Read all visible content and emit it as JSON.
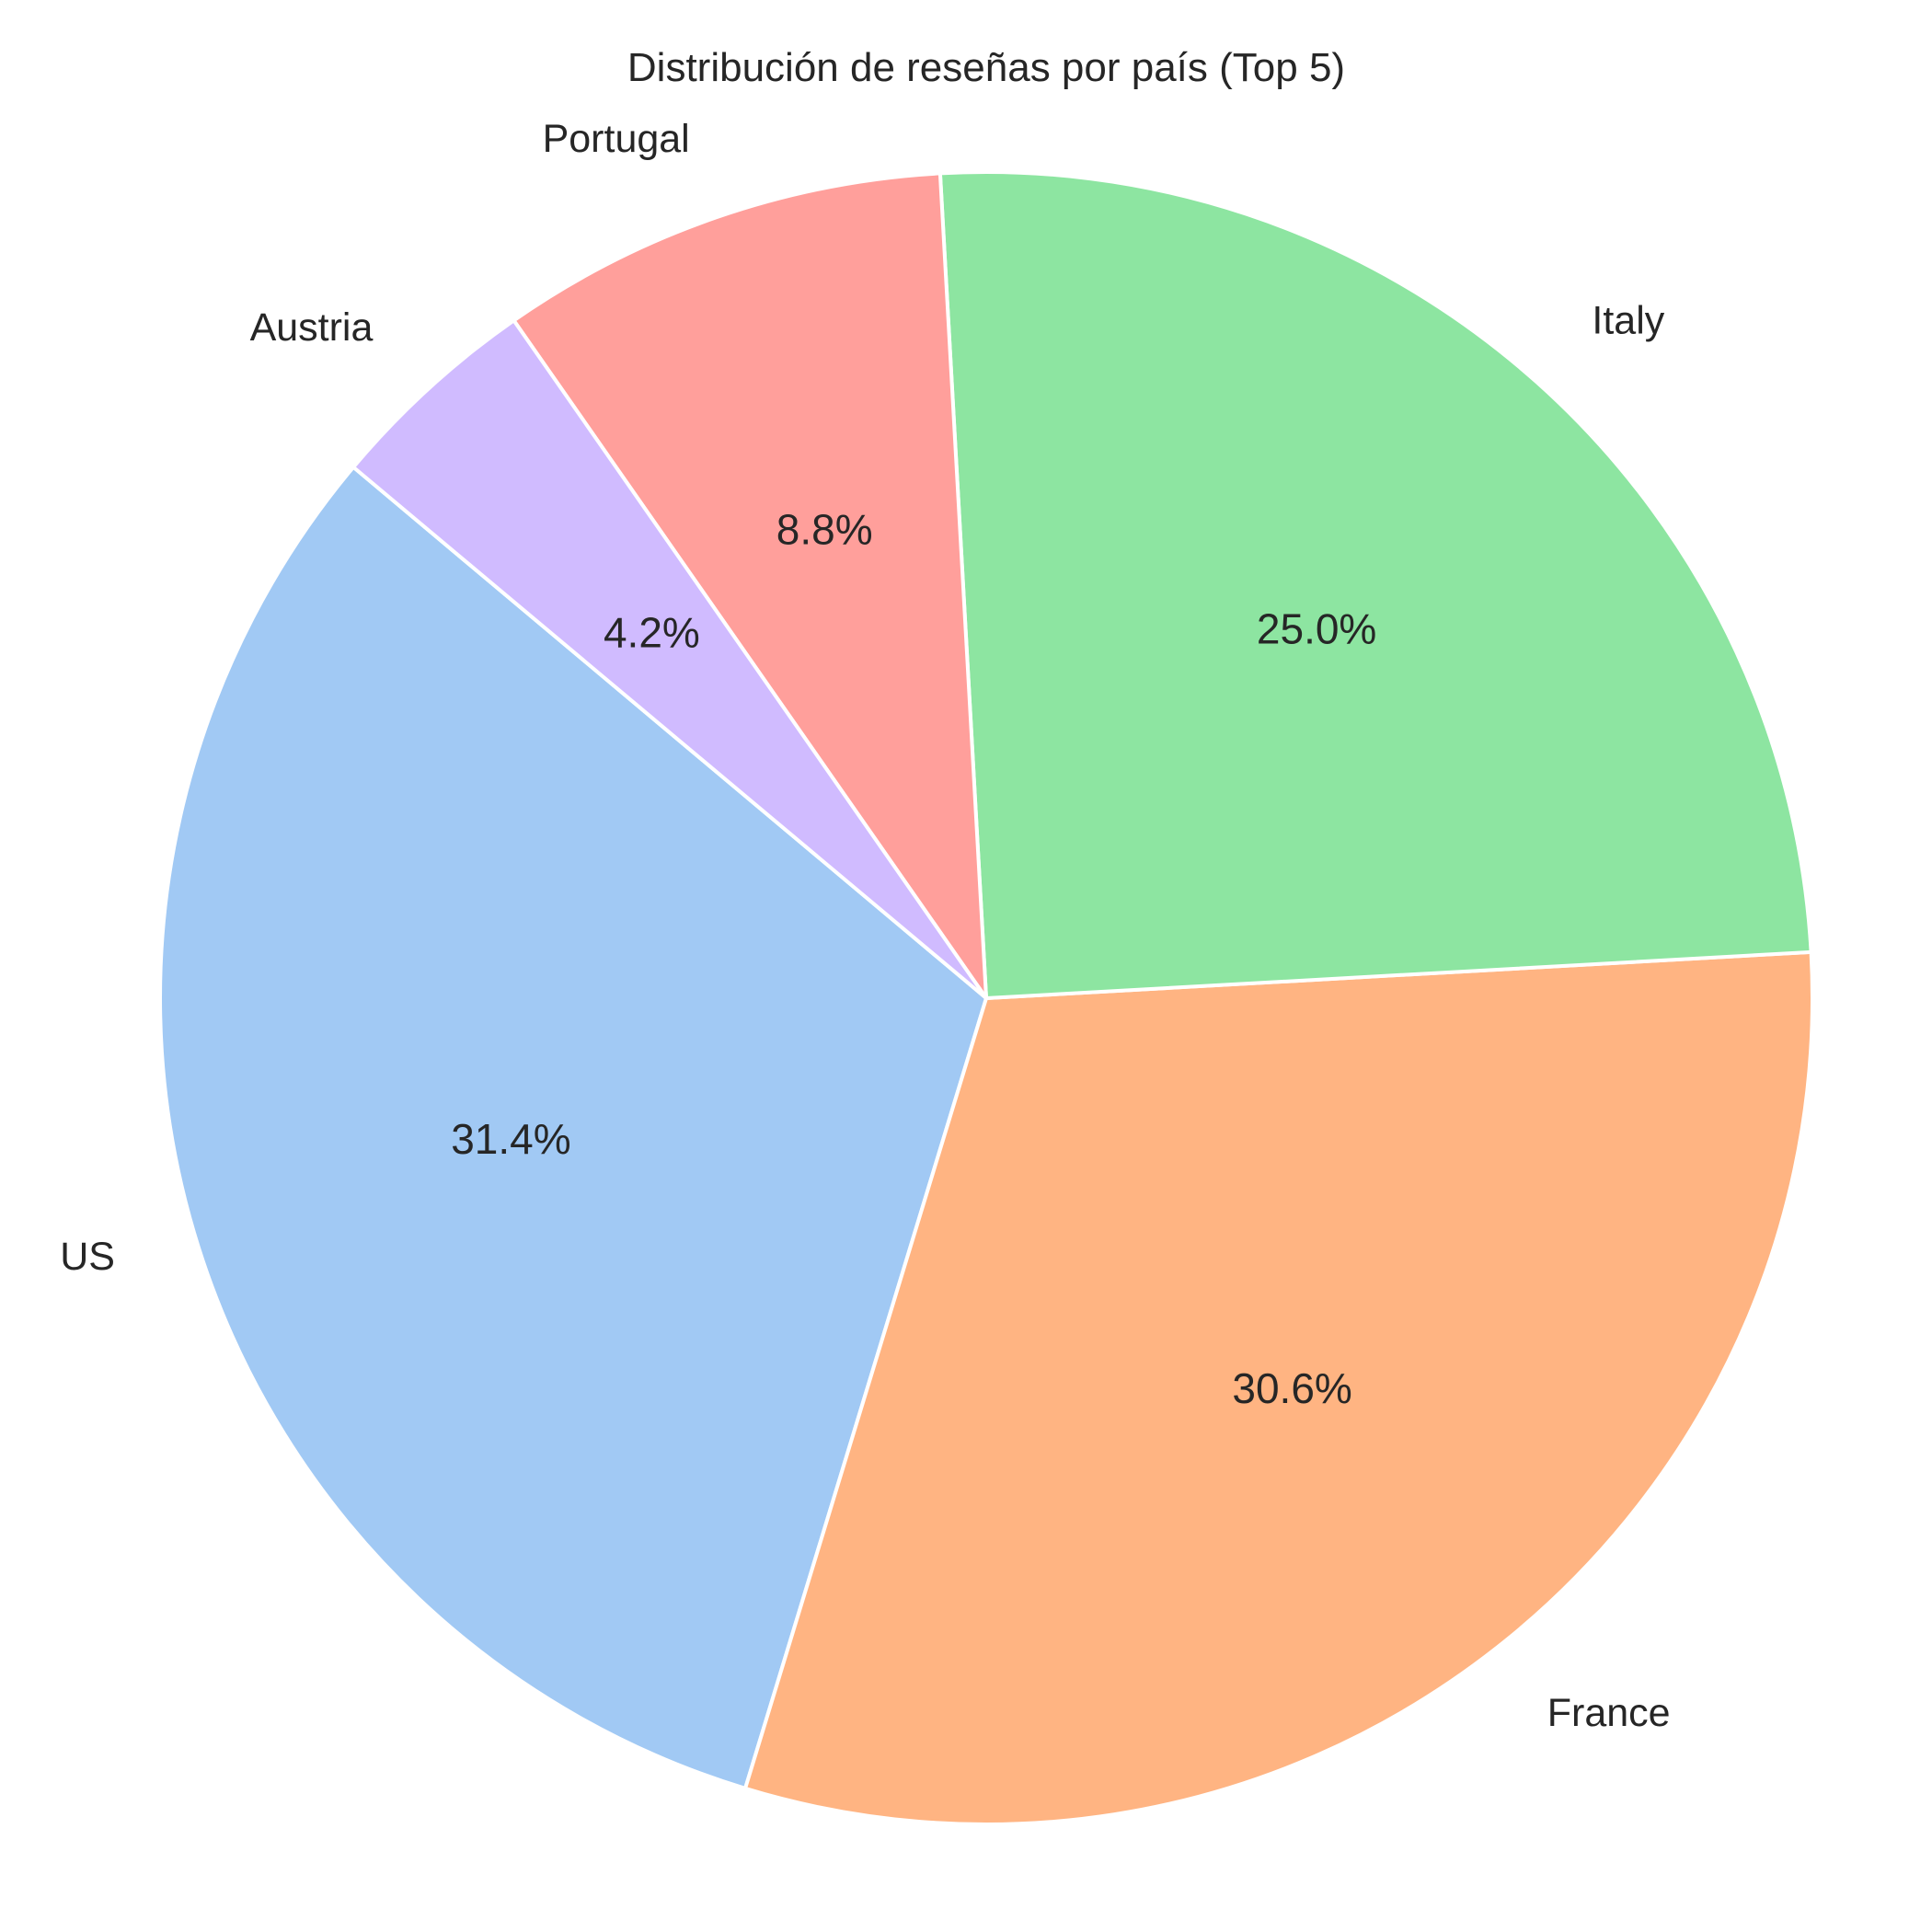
{
  "chart_data": {
    "type": "pie",
    "title": "Distribución de reseñas por país (Top 5)",
    "start_angle_deg": 140,
    "direction": "counterclockwise",
    "slices": [
      {
        "label": "US",
        "value": 31.4,
        "pct_label": "31.4%",
        "color": "#a1c9f4"
      },
      {
        "label": "France",
        "value": 30.6,
        "pct_label": "30.6%",
        "color": "#ffb482"
      },
      {
        "label": "Italy",
        "value": 25.0,
        "pct_label": "25.0%",
        "color": "#8de5a1"
      },
      {
        "label": "Portugal",
        "value": 8.8,
        "pct_label": "8.8%",
        "color": "#ff9f9b"
      },
      {
        "label": "Austria",
        "value": 4.2,
        "pct_label": "4.2%",
        "color": "#d0bbff"
      }
    ],
    "edge_color": "#ffffff"
  }
}
